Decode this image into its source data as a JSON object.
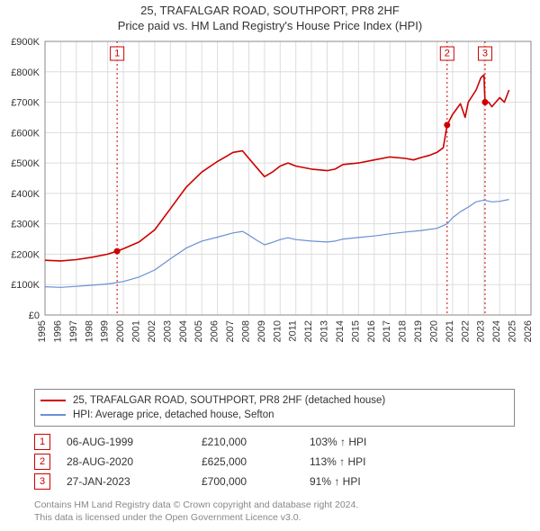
{
  "title": {
    "main": "25, TRAFALGAR ROAD, SOUTHPORT, PR8 2HF",
    "sub": "Price paid vs. HM Land Registry's House Price Index (HPI)"
  },
  "chart": {
    "type": "line",
    "background_color": "#ffffff",
    "grid_color": "#dddddd",
    "axis_color": "#888888",
    "x": {
      "min": 1995,
      "max": 2026,
      "tick_step": 1,
      "labels": [
        "1995",
        "1996",
        "1997",
        "1998",
        "1999",
        "2000",
        "2001",
        "2002",
        "2003",
        "2004",
        "2005",
        "2006",
        "2007",
        "2008",
        "2009",
        "2010",
        "2011",
        "2012",
        "2013",
        "2014",
        "2015",
        "2016",
        "2017",
        "2018",
        "2019",
        "2020",
        "2021",
        "2022",
        "2023",
        "2024",
        "2025",
        "2026"
      ]
    },
    "y": {
      "min": 0,
      "max": 900000,
      "tick_step": 100000,
      "labels": [
        "£0",
        "£100K",
        "£200K",
        "£300K",
        "£400K",
        "£500K",
        "£600K",
        "£700K",
        "£800K",
        "£900K"
      ]
    },
    "series": [
      {
        "id": "price_paid",
        "label": "25, TRAFALGAR ROAD, SOUTHPORT, PR8 2HF (detached house)",
        "color": "#cc0000",
        "line_width": 1.6,
        "points": [
          [
            1995.0,
            180000
          ],
          [
            1996.0,
            178000
          ],
          [
            1997.0,
            182000
          ],
          [
            1998.0,
            190000
          ],
          [
            1999.0,
            200000
          ],
          [
            1999.6,
            210000
          ],
          [
            2000.0,
            218000
          ],
          [
            2001.0,
            240000
          ],
          [
            2002.0,
            280000
          ],
          [
            2003.0,
            350000
          ],
          [
            2004.0,
            420000
          ],
          [
            2005.0,
            470000
          ],
          [
            2006.0,
            505000
          ],
          [
            2006.5,
            520000
          ],
          [
            2007.0,
            535000
          ],
          [
            2007.6,
            540000
          ],
          [
            2008.0,
            515000
          ],
          [
            2008.5,
            485000
          ],
          [
            2009.0,
            455000
          ],
          [
            2009.5,
            470000
          ],
          [
            2010.0,
            490000
          ],
          [
            2010.5,
            500000
          ],
          [
            2011.0,
            490000
          ],
          [
            2012.0,
            480000
          ],
          [
            2013.0,
            475000
          ],
          [
            2013.5,
            480000
          ],
          [
            2014.0,
            495000
          ],
          [
            2015.0,
            500000
          ],
          [
            2016.0,
            510000
          ],
          [
            2017.0,
            520000
          ],
          [
            2018.0,
            515000
          ],
          [
            2018.5,
            510000
          ],
          [
            2019.0,
            518000
          ],
          [
            2019.5,
            525000
          ],
          [
            2020.0,
            535000
          ],
          [
            2020.4,
            550000
          ],
          [
            2020.65,
            625000
          ],
          [
            2021.0,
            660000
          ],
          [
            2021.5,
            695000
          ],
          [
            2021.8,
            650000
          ],
          [
            2022.0,
            700000
          ],
          [
            2022.5,
            740000
          ],
          [
            2022.8,
            780000
          ],
          [
            2023.0,
            790000
          ],
          [
            2023.07,
            700000
          ],
          [
            2023.3,
            700000
          ],
          [
            2023.5,
            685000
          ],
          [
            2024.0,
            715000
          ],
          [
            2024.3,
            700000
          ],
          [
            2024.6,
            740000
          ]
        ]
      },
      {
        "id": "hpi",
        "label": "HPI: Average price, detached house, Sefton",
        "color": "#6b8fd4",
        "line_width": 1.2,
        "points": [
          [
            1995.0,
            93000
          ],
          [
            1996.0,
            91000
          ],
          [
            1997.0,
            94000
          ],
          [
            1998.0,
            98000
          ],
          [
            1999.0,
            102000
          ],
          [
            2000.0,
            110000
          ],
          [
            2001.0,
            125000
          ],
          [
            2002.0,
            148000
          ],
          [
            2003.0,
            185000
          ],
          [
            2004.0,
            220000
          ],
          [
            2005.0,
            243000
          ],
          [
            2006.0,
            256000
          ],
          [
            2007.0,
            270000
          ],
          [
            2007.6,
            275000
          ],
          [
            2008.0,
            263000
          ],
          [
            2008.5,
            246000
          ],
          [
            2009.0,
            231000
          ],
          [
            2009.5,
            239000
          ],
          [
            2010.0,
            248000
          ],
          [
            2010.5,
            254000
          ],
          [
            2011.0,
            248000
          ],
          [
            2012.0,
            243000
          ],
          [
            2013.0,
            240000
          ],
          [
            2013.5,
            243000
          ],
          [
            2014.0,
            250000
          ],
          [
            2015.0,
            255000
          ],
          [
            2016.0,
            260000
          ],
          [
            2017.0,
            267000
          ],
          [
            2018.0,
            273000
          ],
          [
            2019.0,
            278000
          ],
          [
            2020.0,
            285000
          ],
          [
            2020.65,
            300000
          ],
          [
            2021.0,
            320000
          ],
          [
            2021.5,
            340000
          ],
          [
            2022.0,
            355000
          ],
          [
            2022.5,
            372000
          ],
          [
            2023.0,
            378000
          ],
          [
            2023.5,
            372000
          ],
          [
            2024.0,
            374000
          ],
          [
            2024.6,
            380000
          ]
        ]
      }
    ],
    "sale_markers": [
      {
        "n": "1",
        "x": 1999.6,
        "price": 210000
      },
      {
        "n": "2",
        "x": 2020.65,
        "price": 625000
      },
      {
        "n": "3",
        "x": 2023.07,
        "price": 700000
      }
    ],
    "marker_line_color": "#cc0000",
    "marker_box_size": 15
  },
  "legend": {
    "items": [
      {
        "label_ref": "chart.series.0.label",
        "color_ref": "chart.series.0.color"
      },
      {
        "label_ref": "chart.series.1.label",
        "color_ref": "chart.series.1.color"
      }
    ]
  },
  "sales_table": {
    "rows": [
      {
        "n": "1",
        "date": "06-AUG-1999",
        "price": "£210,000",
        "hpi": "103% ↑ HPI"
      },
      {
        "n": "2",
        "date": "28-AUG-2020",
        "price": "£625,000",
        "hpi": "113% ↑ HPI"
      },
      {
        "n": "3",
        "date": "27-JAN-2023",
        "price": "£700,000",
        "hpi": "91% ↑ HPI"
      }
    ]
  },
  "attribution": {
    "line1": "Contains HM Land Registry data © Crown copyright and database right 2024.",
    "line2": "This data is licensed under the Open Government Licence v3.0."
  },
  "typography": {
    "title_fontsize": 13,
    "tick_fontsize": 11,
    "legend_fontsize": 11.5,
    "table_fontsize": 12,
    "attrib_fontsize": 10.5
  }
}
